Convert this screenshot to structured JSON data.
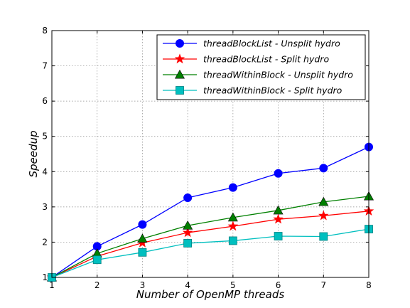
{
  "chart_data": {
    "type": "line",
    "xlabel": "Number of OpenMP threads",
    "ylabel": "Speedup",
    "xlim": [
      1,
      8
    ],
    "ylim": [
      1,
      8
    ],
    "x_ticks": [
      1,
      2,
      3,
      4,
      5,
      6,
      7,
      8
    ],
    "y_ticks": [
      1,
      2,
      3,
      4,
      5,
      6,
      7,
      8
    ],
    "grid": true,
    "legend_position": "top-right",
    "x": [
      1,
      2,
      3,
      4,
      5,
      6,
      7,
      8
    ],
    "series": [
      {
        "name": "threadBlockList - Unsplit hydro",
        "color": "#0000ff",
        "marker": "circle",
        "values": [
          1.0,
          1.88,
          2.5,
          3.26,
          3.55,
          3.95,
          4.1,
          4.7
        ]
      },
      {
        "name": "threadBlockList - Split hydro",
        "color": "#ff0000",
        "marker": "star",
        "values": [
          1.0,
          1.6,
          1.98,
          2.27,
          2.45,
          2.65,
          2.75,
          2.88
        ]
      },
      {
        "name": "threadWithinBlock - Unsplit hydro",
        "color": "#008000",
        "marker": "triangle",
        "values": [
          1.0,
          1.68,
          2.1,
          2.47,
          2.7,
          2.9,
          3.14,
          3.3
        ]
      },
      {
        "name": "threadWithinBlock - Split hydro",
        "color": "#00bfbf",
        "marker": "square",
        "values": [
          1.0,
          1.5,
          1.71,
          1.97,
          2.04,
          2.17,
          2.16,
          2.37
        ]
      }
    ]
  }
}
